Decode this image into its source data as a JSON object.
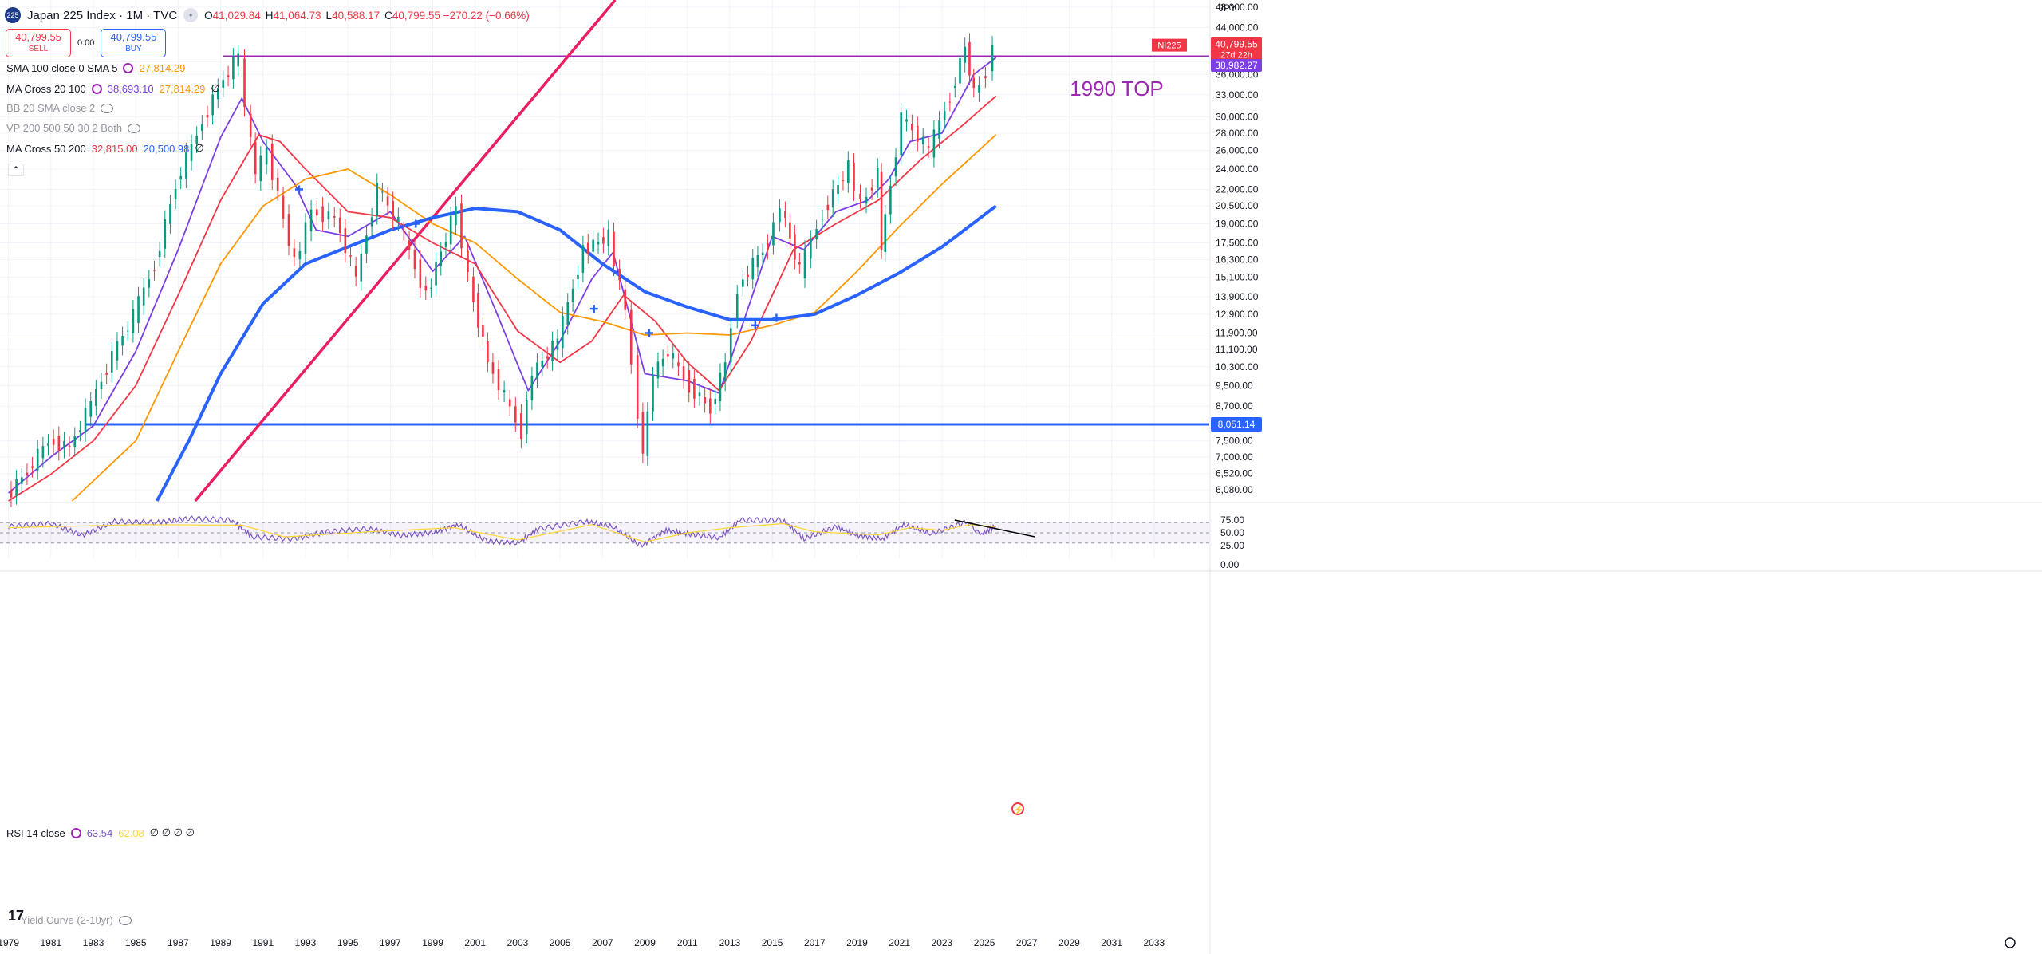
{
  "header": {
    "symbol": "Japan 225 Index · 1M · TVC",
    "logo_text": "225",
    "ohlc": [
      {
        "k": "O",
        "v": "41,029.84"
      },
      {
        "k": "H",
        "v": "41,064.73"
      },
      {
        "k": "L",
        "v": "40,588.17"
      },
      {
        "k": "C",
        "v": "40,799.55 −270.22 (−0.66%)"
      }
    ],
    "sell_price": "40,799.55",
    "sell_label": "SELL",
    "buy_price": "40,799.55",
    "buy_label": "BUY",
    "spread": "0.00"
  },
  "indicators": [
    {
      "name": "SMA 100 close 0 SMA 5",
      "values": [
        {
          "t": "27,814.29",
          "c": "#ff9800"
        }
      ],
      "trailing": "",
      "muted": false,
      "icon": "settings-icon"
    },
    {
      "name": "MA Cross 20 100",
      "values": [
        {
          "t": "38,693.10",
          "c": "#7b3fe4"
        },
        {
          "t": "27,814.29",
          "c": "#ff9800"
        }
      ],
      "trailing": "∅",
      "muted": false,
      "icon": "settings-icon"
    },
    {
      "name": "BB 20 SMA close 2",
      "values": [],
      "trailing": "",
      "muted": true,
      "icon": "eye-off-icon"
    },
    {
      "name": "VP 200 500 50 30 2 Both",
      "values": [],
      "trailing": "",
      "muted": true,
      "icon": "eye-off-icon"
    },
    {
      "name": "MA Cross 50 200",
      "values": [
        {
          "t": "32,815.00",
          "c": "#f23645"
        },
        {
          "t": "20,500.98",
          "c": "#2962ff"
        }
      ],
      "trailing": "∅",
      "muted": false,
      "icon": ""
    }
  ],
  "rsi_legend": {
    "name": "RSI 14 close",
    "v1": "63.54",
    "v2": "62.08",
    "trailing": "∅ ∅ ∅ ∅"
  },
  "yield_legend": {
    "name": "Yield Curve (2-10yr)"
  },
  "tv_logo": "17",
  "currency": "JPY",
  "colors": {
    "up": "#089981",
    "down": "#f23645",
    "ma20": "#7b3fe4",
    "ma50": "#f23645",
    "sma100": "#ff9800",
    "ma200": "#2962ff",
    "trend": "#e91e63",
    "top_line": "#9c27b0"
  },
  "chart_data": {
    "type": "line",
    "title": "1990 TOP",
    "x_unit": "year",
    "xlim": [
      1978.6,
      2035.6
    ],
    "x_ticks": [
      "1979",
      "1981",
      "1983",
      "1985",
      "1987",
      "1989",
      "1991",
      "1993",
      "1995",
      "1997",
      "1999",
      "2001",
      "2003",
      "2005",
      "2007",
      "2009",
      "2011",
      "2013",
      "2015",
      "2017",
      "2019",
      "2021",
      "2023",
      "2025",
      "2027",
      "2029",
      "2031",
      "2033"
    ],
    "y_scale": "log",
    "ylim": [
      5800,
      49500
    ],
    "y_ticks": [
      "48,000.00",
      "44,000.00",
      "38,000.00",
      "36,000.00",
      "33,000.00",
      "30,000.00",
      "28,000.00",
      "26,000.00",
      "24,000.00",
      "22,000.00",
      "20,500.00",
      "19,000.00",
      "17,500.00",
      "16,300.00",
      "15,100.00",
      "13,900.00",
      "12,900.00",
      "11,900.00",
      "11,100.00",
      "10,300.00",
      "9,500.00",
      "8,700.00",
      "7,500.00",
      "7,000.00",
      "6,520.00",
      "6,080.00"
    ],
    "price": [
      [
        1979,
        5900
      ],
      [
        1980,
        6600
      ],
      [
        1981,
        7500
      ],
      [
        1982,
        7300
      ],
      [
        1983,
        8800
      ],
      [
        1984,
        10800
      ],
      [
        1985,
        12800
      ],
      [
        1986,
        16000
      ],
      [
        1987,
        22500
      ],
      [
        1988,
        28000
      ],
      [
        1989,
        34000
      ],
      [
        1989.95,
        38915
      ],
      [
        1990.3,
        31000
      ],
      [
        1990.75,
        23500
      ],
      [
        1991.3,
        26000
      ],
      [
        1992.6,
        16000
      ],
      [
        1993.4,
        20000
      ],
      [
        1994.5,
        19500
      ],
      [
        1995.5,
        15000
      ],
      [
        1996.5,
        22200
      ],
      [
        1997.5,
        19000
      ],
      [
        1998.8,
        14000
      ],
      [
        2000.2,
        20300
      ],
      [
        2000.8,
        15000
      ],
      [
        2001.7,
        10500
      ],
      [
        2003.3,
        7800
      ],
      [
        2003.8,
        10000
      ],
      [
        2005,
        11500
      ],
      [
        2006.2,
        17000
      ],
      [
        2007.4,
        18000
      ],
      [
        2008.2,
        13000
      ],
      [
        2008.8,
        8500
      ],
      [
        2009,
        7100
      ],
      [
        2009.5,
        10000
      ],
      [
        2010.2,
        11000
      ],
      [
        2011.2,
        9500
      ],
      [
        2012.2,
        8600
      ],
      [
        2012.9,
        10400
      ],
      [
        2013.5,
        14500
      ],
      [
        2014.9,
        17500
      ],
      [
        2015.5,
        20500
      ],
      [
        2016.4,
        15500
      ],
      [
        2017.5,
        20000
      ],
      [
        2018.7,
        24200
      ],
      [
        2019.3,
        20500
      ],
      [
        2020.1,
        23700
      ],
      [
        2020.2,
        17000
      ],
      [
        2021.2,
        30000
      ],
      [
        2022.5,
        26000
      ],
      [
        2023.5,
        33000
      ],
      [
        2024.2,
        40500
      ],
      [
        2024.6,
        33000
      ],
      [
        2025.2,
        36500
      ],
      [
        2025.55,
        40799.55
      ]
    ],
    "series": [
      {
        "name": "MA Cross 20 100",
        "key": "ma20",
        "points": [
          [
            1979,
            6000
          ],
          [
            1981,
            7000
          ],
          [
            1983,
            8000
          ],
          [
            1985,
            11000
          ],
          [
            1987,
            17000
          ],
          [
            1989,
            27500
          ],
          [
            1990,
            32500
          ],
          [
            1991,
            27000
          ],
          [
            1992.5,
            22500
          ],
          [
            1993.5,
            18500
          ],
          [
            1995,
            18000
          ],
          [
            1997,
            20000
          ],
          [
            1999,
            15500
          ],
          [
            2000.5,
            18000
          ],
          [
            2002,
            13000
          ],
          [
            2003.5,
            9300
          ],
          [
            2005,
            11500
          ],
          [
            2006.5,
            15000
          ],
          [
            2007.5,
            16800
          ],
          [
            2009,
            10000
          ],
          [
            2011,
            9700
          ],
          [
            2012.5,
            9200
          ],
          [
            2013.5,
            12000
          ],
          [
            2015,
            18000
          ],
          [
            2016.5,
            17000
          ],
          [
            2018,
            20000
          ],
          [
            2019.5,
            21000
          ],
          [
            2020.5,
            23000
          ],
          [
            2021.5,
            27000
          ],
          [
            2023,
            28000
          ],
          [
            2024.5,
            36000
          ],
          [
            2025.55,
            38693.1
          ]
        ]
      },
      {
        "name": "MA Cross 50 200",
        "key": "ma50",
        "points": [
          [
            1979,
            5800
          ],
          [
            1981,
            6500
          ],
          [
            1983,
            7500
          ],
          [
            1985,
            9500
          ],
          [
            1987,
            14000
          ],
          [
            1989,
            21000
          ],
          [
            1990.8,
            27800
          ],
          [
            1991.8,
            27000
          ],
          [
            1993,
            24000
          ],
          [
            1995,
            20000
          ],
          [
            1997,
            19500
          ],
          [
            1999,
            17500
          ],
          [
            2001,
            16000
          ],
          [
            2003,
            12000
          ],
          [
            2005,
            10500
          ],
          [
            2006.5,
            11500
          ],
          [
            2008,
            14000
          ],
          [
            2009.5,
            12500
          ],
          [
            2011,
            10500
          ],
          [
            2012.5,
            9300
          ],
          [
            2014,
            11500
          ],
          [
            2016,
            17000
          ],
          [
            2018,
            19000
          ],
          [
            2020,
            21000
          ],
          [
            2022,
            25000
          ],
          [
            2024,
            29000
          ],
          [
            2025.55,
            32815
          ]
        ]
      },
      {
        "name": "SMA 100 close 0 SMA 5",
        "key": "sma100",
        "points": [
          [
            1982,
            5800
          ],
          [
            1985,
            7500
          ],
          [
            1987,
            11000
          ],
          [
            1989,
            16000
          ],
          [
            1991,
            20500
          ],
          [
            1993,
            23000
          ],
          [
            1995,
            24000
          ],
          [
            1997,
            21500
          ],
          [
            1999,
            19000
          ],
          [
            2001,
            17500
          ],
          [
            2003,
            15000
          ],
          [
            2005,
            13000
          ],
          [
            2007,
            12500
          ],
          [
            2009,
            11800
          ],
          [
            2011,
            11900
          ],
          [
            2013,
            11800
          ],
          [
            2015,
            12300
          ],
          [
            2017,
            13000
          ],
          [
            2019,
            15500
          ],
          [
            2021,
            18800
          ],
          [
            2023,
            22500
          ],
          [
            2025.55,
            27814.29
          ]
        ]
      },
      {
        "name": "MA Cross 50 200",
        "key": "ma200",
        "points": [
          [
            1986,
            5800
          ],
          [
            1987.5,
            7500
          ],
          [
            1989,
            10000
          ],
          [
            1991,
            13500
          ],
          [
            1993,
            16000
          ],
          [
            1995,
            17200
          ],
          [
            1997,
            18500
          ],
          [
            1999,
            19500
          ],
          [
            2001,
            20300
          ],
          [
            2003,
            20000
          ],
          [
            2005,
            18500
          ],
          [
            2007,
            16000
          ],
          [
            2009,
            14200
          ],
          [
            2011,
            13300
          ],
          [
            2013,
            12600
          ],
          [
            2015,
            12600
          ],
          [
            2017,
            12900
          ],
          [
            2019,
            14000
          ],
          [
            2021,
            15400
          ],
          [
            2023,
            17200
          ],
          [
            2025.55,
            20500.98
          ]
        ]
      }
    ],
    "trend_line": [
      [
        1987.8,
        5800
      ],
      [
        2007.6,
        49500
      ]
    ],
    "top_line": 38915,
    "support_line": 8051.14,
    "support_label": "8,051.14",
    "price_label": {
      "sym": "NI225",
      "price": "40,799.55",
      "countdown": "27d 22h"
    },
    "ma_label": "38,982.27",
    "cross_markers": [
      [
        1992.7,
        22000
      ],
      [
        2006.6,
        13200
      ],
      [
        2009.2,
        11900
      ],
      [
        2014.2,
        12300
      ],
      [
        1998.2,
        19000
      ],
      [
        2015.2,
        12700
      ]
    ],
    "rsi": {
      "name": "RSI 14 close",
      "ylim": [
        0,
        100
      ],
      "y_ticks": [
        "75.00",
        "50.00",
        "25.00",
        "0.00"
      ],
      "bands": [
        30,
        70
      ],
      "points": [
        [
          1979,
          62
        ],
        [
          1981,
          68
        ],
        [
          1982.5,
          45
        ],
        [
          1984,
          72
        ],
        [
          1986,
          70
        ],
        [
          1987.5,
          78
        ],
        [
          1989.5,
          75
        ],
        [
          1990.5,
          42
        ],
        [
          1992.5,
          38
        ],
        [
          1994,
          52
        ],
        [
          1996,
          58
        ],
        [
          1997.5,
          45
        ],
        [
          1999,
          50
        ],
        [
          2000.2,
          66
        ],
        [
          2001.5,
          34
        ],
        [
          2003,
          30
        ],
        [
          2004,
          58
        ],
        [
          2006.2,
          72
        ],
        [
          2007.5,
          62
        ],
        [
          2008.8,
          24
        ],
        [
          2010,
          55
        ],
        [
          2011,
          48
        ],
        [
          2012.5,
          40
        ],
        [
          2013.5,
          75
        ],
        [
          2015.5,
          75
        ],
        [
          2016.5,
          38
        ],
        [
          2018,
          62
        ],
        [
          2019,
          45
        ],
        [
          2020.2,
          38
        ],
        [
          2021.2,
          66
        ],
        [
          2022.5,
          48
        ],
        [
          2024.2,
          72
        ],
        [
          2024.8,
          46
        ],
        [
          2025.55,
          63.54
        ]
      ],
      "signal": [
        [
          1979,
          60
        ],
        [
          1985,
          66
        ],
        [
          1990,
          65
        ],
        [
          1992,
          42
        ],
        [
          1996,
          52
        ],
        [
          2000,
          60
        ],
        [
          2003,
          36
        ],
        [
          2006.5,
          66
        ],
        [
          2009,
          32
        ],
        [
          2011,
          50
        ],
        [
          2013,
          60
        ],
        [
          2015.5,
          68
        ],
        [
          2017,
          52
        ],
        [
          2020,
          46
        ],
        [
          2021.5,
          60
        ],
        [
          2023,
          55
        ],
        [
          2024.3,
          66
        ],
        [
          2025.55,
          62.08
        ]
      ],
      "trend_line": [
        [
          2023.6,
          75
        ],
        [
          2027.4,
          42
        ]
      ]
    }
  }
}
